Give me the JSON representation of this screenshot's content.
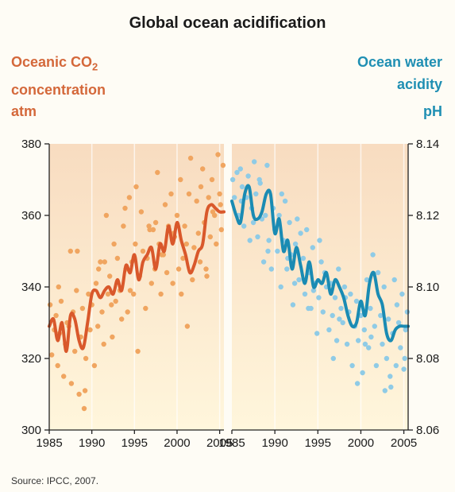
{
  "title": "Global ocean acidification",
  "left_label": {
    "line1": "Oceanic CO",
    "sub": "2",
    "line2": "concentration",
    "unit": "atm"
  },
  "right_label": {
    "line1": "Ocean water",
    "line2": "acidity",
    "unit": "pH"
  },
  "source": "Source: IPCC, 2007.",
  "colors": {
    "co2_line": "#d9582b",
    "co2_points": "#f0a560",
    "ph_line": "#1a8bb3",
    "ph_points": "#8fcbe6",
    "panel_top": "#f8dcc0",
    "panel_bottom": "#fff6dc"
  },
  "chart_data": [
    {
      "type": "line",
      "x_ticks": [
        "1985",
        "1990",
        "1995",
        "2000",
        "2005"
      ],
      "y_ticks": [
        "300",
        "320",
        "340",
        "360",
        "380"
      ],
      "xlim": [
        1985,
        2005.5
      ],
      "ylim": [
        300,
        380
      ],
      "series": [
        {
          "style": "line",
          "x": [
            1985.0,
            1985.5,
            1986.0,
            1986.5,
            1987.0,
            1987.5,
            1988.0,
            1988.5,
            1989.0,
            1989.5,
            1990.0,
            1990.5,
            1991.0,
            1991.5,
            1992.0,
            1992.5,
            1993.0,
            1993.5,
            1994.0,
            1994.5,
            1995.0,
            1995.5,
            1996.0,
            1996.5,
            1997.0,
            1997.5,
            1998.0,
            1998.5,
            1999.0,
            1999.5,
            2000.0,
            2000.5,
            2001.0,
            2001.5,
            2002.0,
            2002.5,
            2003.0,
            2003.5,
            2004.0,
            2004.5,
            2005.0,
            2005.5
          ],
          "y": [
            329,
            331,
            325,
            330,
            322,
            332,
            331,
            325,
            323,
            330,
            338,
            339,
            337,
            339,
            340,
            338,
            342,
            339,
            346,
            344,
            349,
            342,
            347,
            349,
            351,
            345,
            352,
            350,
            357,
            352,
            358,
            353,
            349,
            344,
            346,
            350,
            352,
            361,
            363,
            362,
            361,
            361
          ]
        },
        {
          "style": "scatter",
          "x": [
            1985.1,
            1985.3,
            1985.6,
            1985.8,
            1986.0,
            1986.2,
            1986.4,
            1986.7,
            1986.9,
            1987.1,
            1987.3,
            1987.6,
            1987.8,
            1988.0,
            1988.2,
            1988.5,
            1988.7,
            1988.9,
            1989.1,
            1989.3,
            1989.6,
            1989.8,
            1990.0,
            1990.3,
            1990.5,
            1990.7,
            1991.0,
            1991.2,
            1991.4,
            1991.7,
            1991.9,
            1992.1,
            1992.4,
            1992.6,
            1992.8,
            1993.0,
            1993.3,
            1993.5,
            1993.7,
            1994.0,
            1994.2,
            1994.4,
            1994.7,
            1994.9,
            1995.1,
            1995.4,
            1995.6,
            1995.8,
            1996.0,
            1996.3,
            1996.5,
            1996.7,
            1997.0,
            1997.2,
            1997.4,
            1997.7,
            1997.9,
            1998.1,
            1998.4,
            1998.6,
            1998.8,
            1999.0,
            1999.3,
            1999.5,
            1999.7,
            2000.0,
            2000.2,
            2000.4,
            2000.7,
            2000.9,
            2001.1,
            2001.4,
            2001.6,
            2001.8,
            2002.0,
            2002.3,
            2002.5,
            2002.7,
            2003.0,
            2003.2,
            2003.4,
            2003.7,
            2003.9,
            2004.1,
            2004.4,
            2004.6,
            2004.8,
            2005.0,
            2005.2,
            2005.4,
            1986.1,
            1987.5,
            1989.2,
            1990.8,
            1992.3,
            1993.9,
            1995.2,
            1996.8,
            1998.2,
            1999.6,
            2001.2,
            2002.8,
            2004.2,
            1988.3,
            1991.5,
            1994.5,
            1997.5,
            2000.5,
            2003.5,
            2005.1
          ],
          "y": [
            335,
            321,
            328,
            332,
            318,
            327,
            336,
            315,
            324,
            330,
            329,
            313,
            333,
            322,
            339,
            310,
            326,
            334,
            306,
            320,
            338,
            328,
            335,
            318,
            341,
            329,
            347,
            333,
            324,
            360,
            338,
            343,
            326,
            352,
            336,
            348,
            339,
            331,
            357,
            345,
            333,
            365,
            347,
            338,
            352,
            322,
            343,
            361,
            350,
            334,
            348,
            357,
            341,
            356,
            345,
            372,
            352,
            338,
            349,
            363,
            344,
            357,
            366,
            341,
            354,
            360,
            345,
            370,
            348,
            357,
            352,
            366,
            376,
            342,
            351,
            364,
            355,
            347,
            373,
            358,
            345,
            365,
            354,
            370,
            360,
            352,
            377,
            366,
            356,
            374,
            340,
            350,
            311,
            345,
            335,
            362,
            368,
            356,
            349,
            355,
            329,
            368,
            361,
            350,
            347,
            339,
            358,
            338,
            343,
            363
          ]
        }
      ]
    },
    {
      "type": "line",
      "x_ticks": [
        "1985",
        "1990",
        "1995",
        "2000",
        "2005"
      ],
      "y_ticks": [
        "8.06",
        "8.08",
        "8.10",
        "8.12",
        "8.14"
      ],
      "xlim": [
        1985,
        2005.5
      ],
      "ylim": [
        8.06,
        8.14
      ],
      "series": [
        {
          "style": "line",
          "x": [
            1985.0,
            1985.5,
            1986.0,
            1986.5,
            1987.0,
            1987.5,
            1988.0,
            1988.5,
            1989.0,
            1989.5,
            1990.0,
            1990.5,
            1991.0,
            1991.5,
            1992.0,
            1992.5,
            1993.0,
            1993.5,
            1994.0,
            1994.5,
            1995.0,
            1995.5,
            1996.0,
            1996.5,
            1997.0,
            1997.5,
            1998.0,
            1998.5,
            1999.0,
            1999.5,
            2000.0,
            2000.5,
            2001.0,
            2001.5,
            2002.0,
            2002.5,
            2003.0,
            2003.5,
            2004.0,
            2004.5,
            2005.0,
            2005.5
          ],
          "y": [
            8.124,
            8.12,
            8.118,
            8.126,
            8.128,
            8.12,
            8.119,
            8.121,
            8.126,
            8.126,
            8.115,
            8.119,
            8.11,
            8.113,
            8.105,
            8.111,
            8.106,
            8.101,
            8.107,
            8.1,
            8.102,
            8.101,
            8.104,
            8.098,
            8.102,
            8.1,
            8.097,
            8.092,
            8.089,
            8.09,
            8.096,
            8.092,
            8.101,
            8.104,
            8.098,
            8.095,
            8.087,
            8.085,
            8.088,
            8.089,
            8.089,
            8.089
          ]
        },
        {
          "style": "scatter",
          "x": [
            1985.1,
            1985.3,
            1985.6,
            1985.8,
            1986.0,
            1986.2,
            1986.4,
            1986.7,
            1986.9,
            1987.1,
            1987.3,
            1987.6,
            1987.8,
            1988.0,
            1988.2,
            1988.5,
            1988.7,
            1988.9,
            1989.1,
            1989.3,
            1989.6,
            1989.8,
            1990.0,
            1990.3,
            1990.5,
            1990.7,
            1991.0,
            1991.2,
            1991.4,
            1991.7,
            1991.9,
            1992.1,
            1992.4,
            1992.6,
            1992.8,
            1993.0,
            1993.3,
            1993.5,
            1993.7,
            1994.0,
            1994.2,
            1994.4,
            1994.7,
            1994.9,
            1995.1,
            1995.4,
            1995.6,
            1995.8,
            1996.0,
            1996.3,
            1996.5,
            1996.7,
            1997.0,
            1997.2,
            1997.4,
            1997.7,
            1997.9,
            1998.1,
            1998.4,
            1998.6,
            1998.8,
            1999.0,
            1999.3,
            1999.5,
            1999.7,
            2000.0,
            2000.2,
            2000.4,
            2000.7,
            2000.9,
            2001.1,
            2001.4,
            2001.6,
            2001.8,
            2002.0,
            2002.3,
            2002.5,
            2002.7,
            2003.0,
            2003.2,
            2003.4,
            2003.7,
            2003.9,
            2004.1,
            2004.4,
            2004.6,
            2004.8,
            2005.0,
            2005.2,
            2005.4,
            1986.1,
            1987.5,
            1989.2,
            1990.8,
            1992.3,
            1993.9,
            1995.2,
            1996.8,
            1998.2,
            1999.6,
            2001.2,
            2002.8,
            2004.2,
            1988.3,
            1991.5,
            1994.5,
            1997.5,
            2000.5,
            2003.5,
            2005.1
          ],
          "y": [
            8.13,
            8.125,
            8.132,
            8.12,
            8.133,
            8.128,
            8.117,
            8.125,
            8.131,
            8.113,
            8.122,
            8.135,
            8.126,
            8.114,
            8.13,
            8.119,
            8.107,
            8.12,
            8.134,
            8.113,
            8.105,
            8.122,
            8.116,
            8.11,
            8.12,
            8.1,
            8.113,
            8.124,
            8.105,
            8.118,
            8.109,
            8.095,
            8.112,
            8.119,
            8.102,
            8.115,
            8.108,
            8.098,
            8.116,
            8.104,
            8.094,
            8.111,
            8.101,
            8.087,
            8.097,
            8.107,
            8.093,
            8.104,
            8.1,
            8.088,
            8.101,
            8.092,
            8.097,
            8.085,
            8.105,
            8.094,
            8.09,
            8.1,
            8.084,
            8.093,
            8.098,
            8.078,
            8.089,
            8.096,
            8.085,
            8.092,
            8.076,
            8.088,
            8.102,
            8.083,
            8.094,
            8.109,
            8.089,
            8.078,
            8.104,
            8.092,
            8.084,
            8.1,
            8.08,
            8.091,
            8.075,
            8.087,
            8.102,
            8.078,
            8.09,
            8.083,
            8.098,
            8.077,
            8.088,
            8.093,
            8.124,
            8.118,
            8.11,
            8.126,
            8.101,
            8.094,
            8.113,
            8.08,
            8.097,
            8.073,
            8.086,
            8.071,
            8.095,
            8.129,
            8.108,
            8.099,
            8.091,
            8.084,
            8.072,
            8.08
          ]
        }
      ]
    }
  ]
}
